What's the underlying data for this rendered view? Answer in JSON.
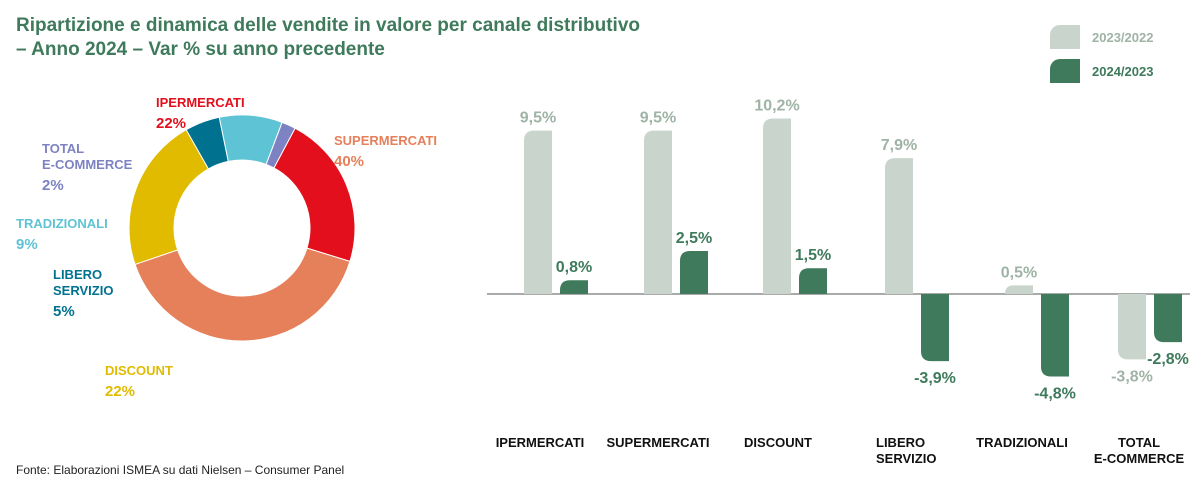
{
  "title_line1": "Ripartizione e dinamica delle vendite in valore per canale distributivo",
  "title_line2": "– Anno 2024 – Var % su anno precedente",
  "source": "Fonte: Elaborazioni ISMEA su dati Nielsen – Consumer Panel",
  "colors": {
    "title": "#3e7a5b",
    "series_2023": "#c9d5cc",
    "series_2024": "#3e7a5b",
    "label_2023": "#9fb3a6",
    "label_2024": "#3e7a5b"
  },
  "chart_data": [
    {
      "type": "pie",
      "donut": true,
      "slices": [
        {
          "label": "IPERMERCATI",
          "value": 22,
          "display": "22%",
          "color": "#e30f1c"
        },
        {
          "label": "SUPERMERCATI",
          "value": 40,
          "display": "40%",
          "color": "#e5805a"
        },
        {
          "label": "DISCOUNT",
          "value": 22,
          "display": "22%",
          "color": "#e0bb00"
        },
        {
          "label": "LIBERO SERVIZIO",
          "value": 5,
          "display": "5%",
          "color": "#007290"
        },
        {
          "label": "TRADIZIONALI",
          "value": 9,
          "display": "9%",
          "color": "#5ec3d4"
        },
        {
          "label": "TOTAL E-COMMERCE",
          "value": 2,
          "display": "2%",
          "color": "#7d82c3"
        }
      ]
    },
    {
      "type": "bar",
      "categories": [
        "IPERMERCATI",
        "SUPERMERCATI",
        "DISCOUNT",
        "LIBERO SERVIZIO",
        "TRADIZIONALI",
        "TOTAL E-COMMERCE"
      ],
      "series": [
        {
          "name": "2023/2022",
          "values": [
            9.5,
            9.5,
            10.2,
            7.9,
            0.5,
            -3.8
          ],
          "labels": [
            "9,5%",
            "9,5%",
            "10,2%",
            "7,9%",
            "0,5%",
            "-3,8%"
          ]
        },
        {
          "name": "2024/2023",
          "values": [
            0.8,
            2.5,
            1.5,
            -3.9,
            -4.8,
            -2.8
          ],
          "labels": [
            "0,8%",
            "2,5%",
            "1,5%",
            "-3,9%",
            "-4,8%",
            "-2,8%"
          ]
        }
      ],
      "legend_position": "top-right",
      "grid": false
    }
  ]
}
